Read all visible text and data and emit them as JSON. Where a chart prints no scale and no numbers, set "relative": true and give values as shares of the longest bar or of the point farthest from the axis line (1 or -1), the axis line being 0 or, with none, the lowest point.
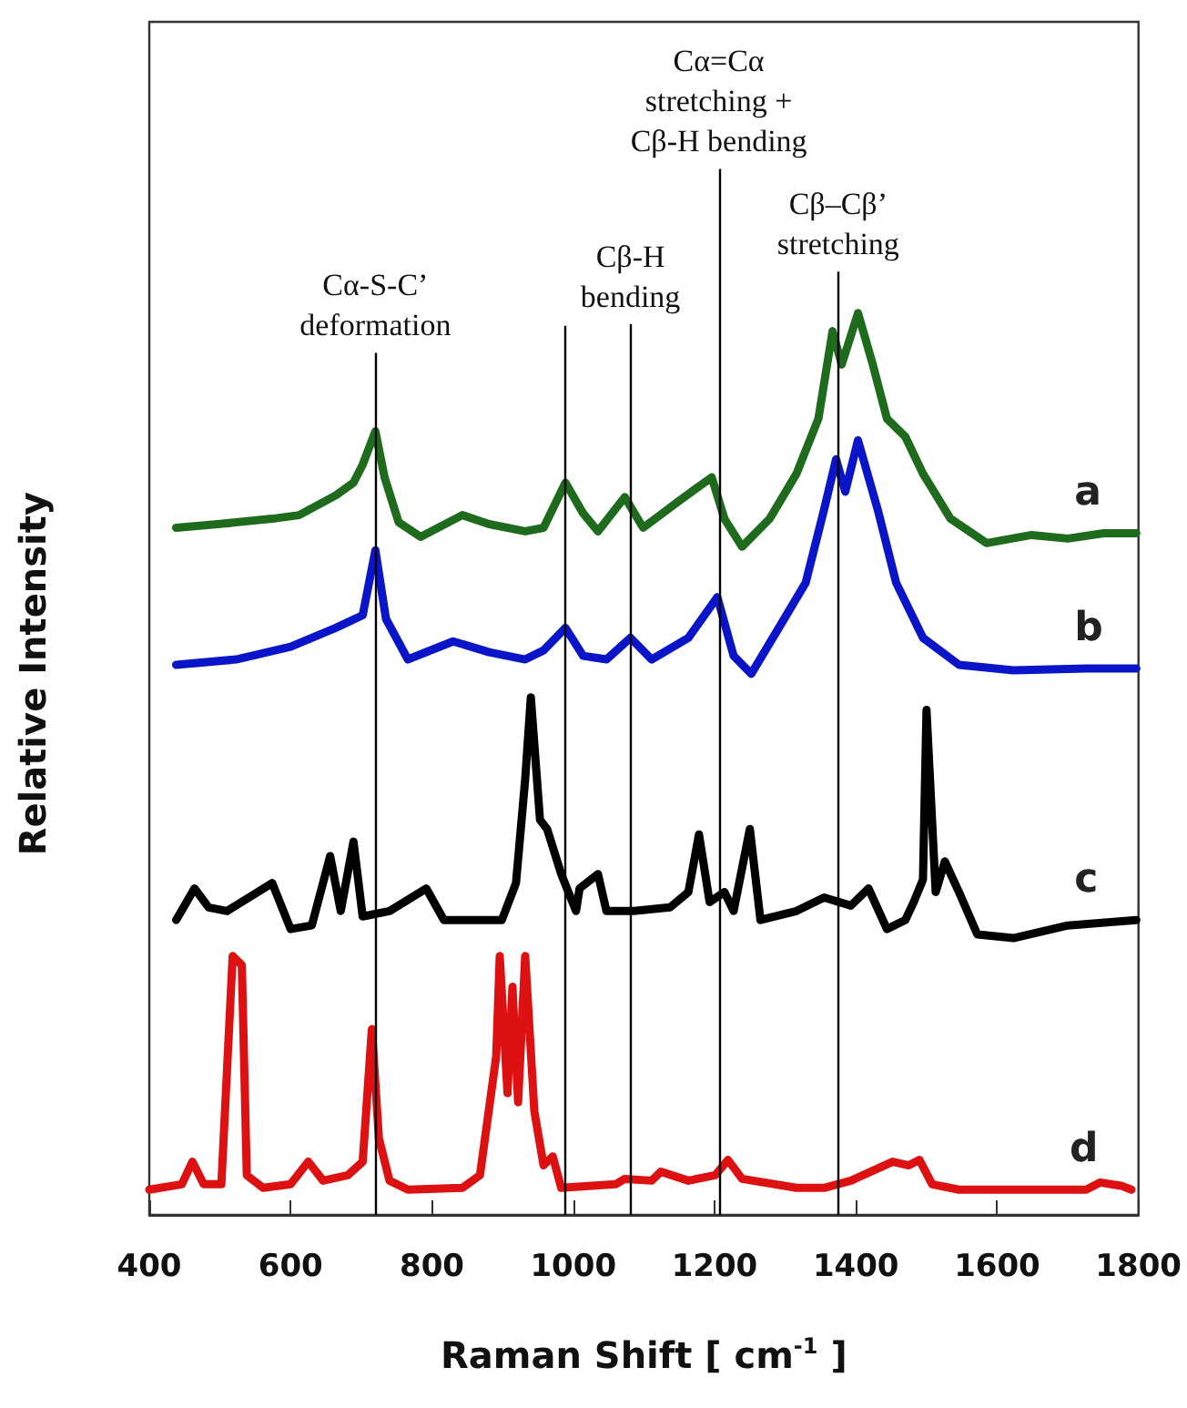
{
  "chart_data": {
    "type": "line",
    "relative": true,
    "xlabel": "Raman Shift [ cm$^{-1}$ ]",
    "ylabel": "Relative Intensity",
    "xlim": [
      400,
      1800
    ],
    "xticks": [
      400,
      600,
      800,
      1000,
      1200,
      1400,
      1600,
      1800
    ],
    "series": [
      {
        "name": "a",
        "color": "#1e6b1e",
        "x": [
          438,
          497,
          574,
          612,
          664,
          689,
          702,
          720,
          733,
          753,
          784,
          843,
          881,
          932,
          958,
          989,
          1014,
          1035,
          1073,
          1099,
          1150,
          1196,
          1214,
          1239,
          1278,
          1316,
          1347,
          1367,
          1380,
          1403,
          1424,
          1444,
          1470,
          1495,
          1534,
          1585,
          1649,
          1700,
          1751,
          1797
        ],
        "values": [
          0.762,
          0.766,
          0.772,
          0.776,
          0.798,
          0.812,
          0.832,
          0.869,
          0.818,
          0.768,
          0.752,
          0.776,
          0.766,
          0.758,
          0.762,
          0.812,
          0.778,
          0.758,
          0.796,
          0.762,
          0.792,
          0.818,
          0.772,
          0.741,
          0.772,
          0.822,
          0.883,
          0.98,
          0.943,
          1,
          0.943,
          0.883,
          0.863,
          0.822,
          0.772,
          0.745,
          0.754,
          0.75,
          0.756,
          0.756
        ]
      },
      {
        "name": "b",
        "color": "#0a14c8",
        "x": [
          438,
          523,
          600,
          664,
          702,
          720,
          735,
          766,
          830,
          881,
          932,
          958,
          989,
          1014,
          1047,
          1081,
          1111,
          1163,
          1204,
          1227,
          1252,
          1291,
          1329,
          1355,
          1372,
          1385,
          1403,
          1431,
          1457,
          1495,
          1546,
          1623,
          1726,
          1797
        ],
        "values": [
          0.61,
          0.616,
          0.63,
          0.651,
          0.665,
          0.737,
          0.661,
          0.616,
          0.636,
          0.624,
          0.616,
          0.626,
          0.651,
          0.62,
          0.616,
          0.64,
          0.616,
          0.64,
          0.685,
          0.62,
          0.6,
          0.651,
          0.701,
          0.782,
          0.838,
          0.802,
          0.859,
          0.782,
          0.701,
          0.64,
          0.61,
          0.604,
          0.606,
          0.606
        ]
      },
      {
        "name": "c",
        "color": "#000000",
        "x": [
          438,
          464,
          484,
          510,
          574,
          600,
          630,
          656,
          671,
          689,
          702,
          740,
          792,
          817,
          856,
          899,
          919,
          932,
          940,
          953,
          963,
          983,
          1004,
          1009,
          1035,
          1047,
          1086,
          1137,
          1163,
          1178,
          1193,
          1214,
          1227,
          1250,
          1265,
          1316,
          1355,
          1393,
          1418,
          1444,
          1470,
          1482,
          1495,
          1500,
          1513,
          1526,
          1546,
          1572,
          1623,
          1700,
          1797
        ],
        "values": [
          0.327,
          0.362,
          0.341,
          0.337,
          0.368,
          0.317,
          0.321,
          0.398,
          0.337,
          0.414,
          0.331,
          0.337,
          0.362,
          0.327,
          0.327,
          0.327,
          0.368,
          0.483,
          0.574,
          0.438,
          0.428,
          0.378,
          0.337,
          0.362,
          0.378,
          0.337,
          0.337,
          0.341,
          0.358,
          0.422,
          0.347,
          0.358,
          0.337,
          0.428,
          0.327,
          0.337,
          0.352,
          0.343,
          0.362,
          0.317,
          0.327,
          0.347,
          0.372,
          0.56,
          0.358,
          0.392,
          0.358,
          0.311,
          0.307,
          0.321,
          0.327
        ]
      },
      {
        "name": "d",
        "color": "#dd1111",
        "x": [
          400,
          446,
          461,
          477,
          502,
          518,
          531,
          538,
          561,
          600,
          625,
          646,
          681,
          702,
          715,
          725,
          740,
          766,
          843,
          868,
          891,
          896,
          907,
          914,
          922,
          932,
          945,
          958,
          971,
          983,
          1060,
          1073,
          1111,
          1124,
          1163,
          1201,
          1219,
          1239,
          1316,
          1355,
          1393,
          1452,
          1475,
          1490,
          1508,
          1546,
          1623,
          1726,
          1746,
          1777,
          1790
        ],
        "values": [
          0.028,
          0.034,
          0.059,
          0.034,
          0.034,
          0.287,
          0.277,
          0.044,
          0.03,
          0.034,
          0.059,
          0.038,
          0.044,
          0.059,
          0.206,
          0.085,
          0.038,
          0.028,
          0.03,
          0.044,
          0.176,
          0.287,
          0.135,
          0.253,
          0.125,
          0.287,
          0.115,
          0.055,
          0.065,
          0.03,
          0.034,
          0.04,
          0.038,
          0.048,
          0.038,
          0.044,
          0.061,
          0.04,
          0.03,
          0.03,
          0.038,
          0.059,
          0.055,
          0.061,
          0.034,
          0.028,
          0.028,
          0.028,
          0.036,
          0.032,
          0.028
        ]
      }
    ],
    "ref_lines": [
      {
        "axis": "x",
        "value": 720,
        "label": "Cα-S-C’\ndeformation",
        "color": "#000000"
      },
      {
        "axis": "x",
        "value": 988,
        "label": null,
        "color": "#000000"
      },
      {
        "axis": "x",
        "value": 1081,
        "label": "Cβ-H\nbending",
        "color": "#000000"
      },
      {
        "axis": "x",
        "value": 1206,
        "label": "Cα=Cα\nstretching +\nCβ-H bending",
        "color": "#000000"
      },
      {
        "axis": "x",
        "value": 1375,
        "label": "Cβ–Cβ’\nstretching",
        "color": "#000000"
      }
    ]
  }
}
